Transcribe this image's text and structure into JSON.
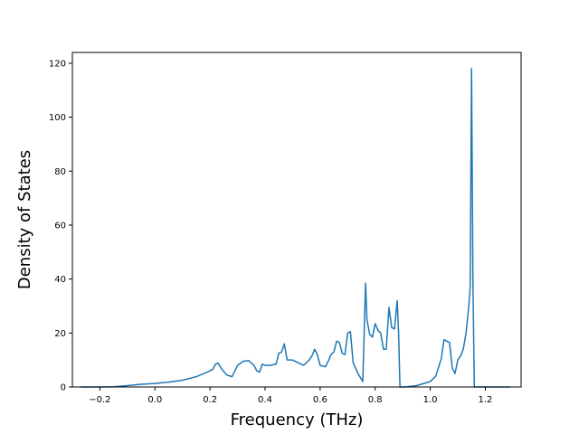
{
  "chart_data": {
    "type": "line",
    "title": "",
    "xlabel": "Frequency (THz)",
    "ylabel": "Density of States",
    "xlim": [
      -0.3,
      1.33
    ],
    "ylim": [
      0,
      124
    ],
    "xticks": [
      -0.2,
      0.0,
      0.2,
      0.4,
      0.6,
      0.8,
      1.0,
      1.2
    ],
    "xtick_labels": [
      "−0.2",
      "0.0",
      "0.2",
      "0.4",
      "0.6",
      "0.8",
      "1.0",
      "1.2"
    ],
    "yticks": [
      0,
      20,
      40,
      60,
      80,
      100,
      120
    ],
    "ytick_labels": [
      "0",
      "20",
      "40",
      "60",
      "80",
      "100",
      "120"
    ],
    "grid": false,
    "legend": false,
    "series": [
      {
        "color": "#1f77b4",
        "x": [
          -0.27,
          -0.2,
          -0.15,
          -0.1,
          -0.05,
          0.0,
          0.05,
          0.1,
          0.15,
          0.19,
          0.21,
          0.22,
          0.23,
          0.24,
          0.26,
          0.28,
          0.3,
          0.32,
          0.34,
          0.36,
          0.37,
          0.38,
          0.39,
          0.4,
          0.42,
          0.44,
          0.45,
          0.46,
          0.47,
          0.48,
          0.5,
          0.52,
          0.54,
          0.56,
          0.57,
          0.58,
          0.59,
          0.6,
          0.62,
          0.64,
          0.65,
          0.66,
          0.67,
          0.68,
          0.69,
          0.7,
          0.71,
          0.72,
          0.74,
          0.755,
          0.765,
          0.77,
          0.78,
          0.79,
          0.8,
          0.81,
          0.82,
          0.83,
          0.84,
          0.85,
          0.86,
          0.87,
          0.88,
          0.885,
          0.89,
          0.91,
          0.95,
          1.0,
          1.02,
          1.04,
          1.05,
          1.06,
          1.07,
          1.08,
          1.09,
          1.1,
          1.11,
          1.12,
          1.13,
          1.14,
          1.145,
          1.15,
          1.155,
          1.16,
          1.2,
          1.29
        ],
        "y": [
          0,
          0,
          0.1,
          0.5,
          1.0,
          1.3,
          1.8,
          2.5,
          3.8,
          5.5,
          6.5,
          8.5,
          8.8,
          7.0,
          4.5,
          3.8,
          8.0,
          9.5,
          9.8,
          8.0,
          6.0,
          5.5,
          8.5,
          8.0,
          8.0,
          8.5,
          12.5,
          13.0,
          16.0,
          10.0,
          10.0,
          9.0,
          8.0,
          10.0,
          11.5,
          14.0,
          12.0,
          8.0,
          7.5,
          12.0,
          13.0,
          17.0,
          16.5,
          12.5,
          12.0,
          20.0,
          20.5,
          9.0,
          4.5,
          2.0,
          38.5,
          25.0,
          19.5,
          18.5,
          23.5,
          21.0,
          20.0,
          14.0,
          14.0,
          29.5,
          22.0,
          21.5,
          32.0,
          20.0,
          0,
          0,
          0.5,
          2.0,
          4.0,
          10.5,
          17.5,
          17.0,
          16.5,
          7.0,
          5.0,
          10.0,
          11.5,
          14.0,
          20.0,
          30.0,
          37.0,
          118.0,
          40.0,
          0,
          0,
          0
        ]
      }
    ]
  }
}
